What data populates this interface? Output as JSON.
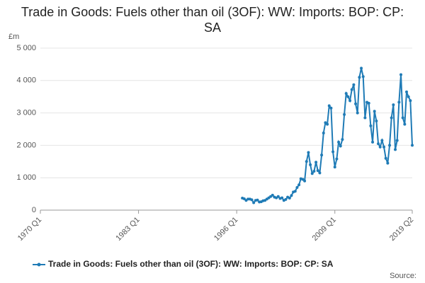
{
  "chart_data": {
    "type": "line",
    "title": "Trade in Goods: Fuels other than oil (3OF): WW: Imports: BOP: CP: SA",
    "y_label": "£m",
    "source": "Source:",
    "x": [
      "1996 Q4",
      "1997 Q1",
      "1997 Q2",
      "1997 Q3",
      "1997 Q4",
      "1998 Q1",
      "1998 Q2",
      "1998 Q3",
      "1998 Q4",
      "1999 Q1",
      "1999 Q2",
      "1999 Q3",
      "1999 Q4",
      "2000 Q1",
      "2000 Q2",
      "2000 Q3",
      "2000 Q4",
      "2001 Q1",
      "2001 Q2",
      "2001 Q3",
      "2001 Q4",
      "2002 Q1",
      "2002 Q2",
      "2002 Q3",
      "2002 Q4",
      "2003 Q1",
      "2003 Q2",
      "2003 Q3",
      "2003 Q4",
      "2004 Q1",
      "2004 Q2",
      "2004 Q3",
      "2004 Q4",
      "2005 Q1",
      "2005 Q2",
      "2005 Q3",
      "2005 Q4",
      "2006 Q1",
      "2006 Q2",
      "2006 Q3",
      "2006 Q4",
      "2007 Q1",
      "2007 Q2",
      "2007 Q3",
      "2007 Q4",
      "2008 Q1",
      "2008 Q2",
      "2008 Q3",
      "2008 Q4",
      "2009 Q1",
      "2009 Q2",
      "2009 Q3",
      "2009 Q4",
      "2010 Q1",
      "2010 Q2",
      "2010 Q3",
      "2010 Q4",
      "2011 Q1",
      "2011 Q2",
      "2011 Q3",
      "2011 Q4",
      "2012 Q1",
      "2012 Q2",
      "2012 Q3",
      "2012 Q4",
      "2013 Q1",
      "2013 Q2",
      "2013 Q3",
      "2013 Q4",
      "2014 Q1",
      "2014 Q2",
      "2014 Q3",
      "2014 Q4",
      "2015 Q1",
      "2015 Q2",
      "2015 Q3",
      "2015 Q4",
      "2016 Q1",
      "2016 Q2",
      "2016 Q3",
      "2016 Q4",
      "2017 Q1",
      "2017 Q2",
      "2017 Q3",
      "2017 Q4",
      "2018 Q1",
      "2018 Q2",
      "2018 Q3",
      "2018 Q4",
      "2019 Q1",
      "2019 Q2"
    ],
    "series": [
      {
        "name": "Trade in Goods: Fuels other than oil (3OF): WW: Imports: BOP: CP: SA",
        "color": "#1f7bb6",
        "values": [
          370,
          350,
          300,
          340,
          340,
          320,
          230,
          300,
          310,
          250,
          260,
          290,
          300,
          340,
          380,
          420,
          460,
          400,
          380,
          420,
          360,
          380,
          300,
          330,
          400,
          370,
          450,
          560,
          580,
          700,
          780,
          970,
          950,
          900,
          1500,
          1780,
          1400,
          1130,
          1200,
          1480,
          1220,
          1150,
          1700,
          2380,
          2700,
          2650,
          3220,
          3150,
          1800,
          1330,
          1580,
          2100,
          1980,
          2180,
          2950,
          3600,
          3500,
          3380,
          3720,
          3870,
          3280,
          3000,
          4100,
          4380,
          4120,
          2850,
          3330,
          3300,
          2600,
          2100,
          3050,
          2750,
          2050,
          1950,
          2150,
          1950,
          1600,
          1450,
          2000,
          2850,
          3250,
          1870,
          2150,
          3330,
          4180,
          2850,
          2650,
          3650,
          3500,
          3380,
          2000
        ]
      }
    ],
    "xlim": [
      "1970 Q1",
      "2019 Q2"
    ],
    "xticks": [
      "1970 Q1",
      "1983 Q1",
      "1996 Q1",
      "2009 Q1",
      "2019 Q2"
    ],
    "ylim": [
      0,
      5000
    ],
    "yticks": [
      0,
      {
        "value": 1000,
        "label": "1 000"
      },
      {
        "value": 2000,
        "label": "2 000"
      },
      {
        "value": 3000,
        "label": "3 000"
      },
      {
        "value": 4000,
        "label": "4 000"
      },
      {
        "value": 5000,
        "label": "5 000"
      }
    ],
    "grid": true
  }
}
